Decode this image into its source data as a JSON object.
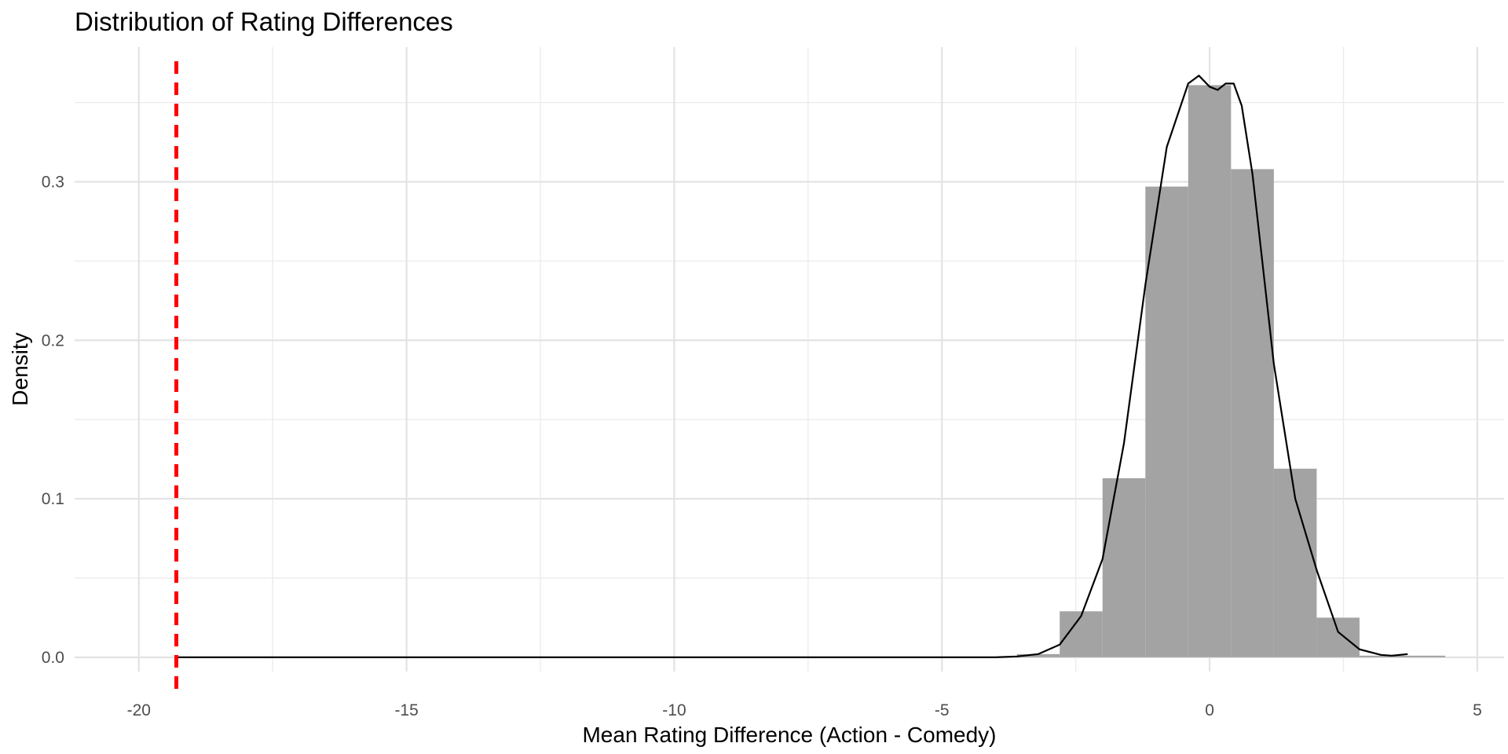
{
  "chart_data": {
    "type": "histogram",
    "title": "Distribution of Rating Differences",
    "xlabel": "Mean Rating Difference (Action - Comedy)",
    "ylabel": "Density",
    "xlim": [
      -21.2,
      5.5
    ],
    "ylim": [
      -0.009,
      0.385
    ],
    "x_ticks": [
      -20,
      -15,
      -10,
      -5,
      0,
      5
    ],
    "x_tick_labels": [
      "-20",
      "-15",
      "-10",
      "-5",
      "0",
      "5"
    ],
    "y_ticks": [
      0.0,
      0.1,
      0.2,
      0.3
    ],
    "y_tick_labels": [
      "0.0",
      "0.1",
      "0.2",
      "0.3"
    ],
    "grid": true,
    "histogram": {
      "fill": "#A3A3A3",
      "bins": [
        {
          "x0": -3.6,
          "x1": -2.8,
          "density": 0.002
        },
        {
          "x0": -2.8,
          "x1": -2.0,
          "density": 0.029
        },
        {
          "x0": -2.0,
          "x1": -1.2,
          "density": 0.113
        },
        {
          "x0": -1.2,
          "x1": -0.4,
          "density": 0.297
        },
        {
          "x0": -0.4,
          "x1": 0.4,
          "density": 0.361
        },
        {
          "x0": 0.4,
          "x1": 1.2,
          "density": 0.308
        },
        {
          "x0": 1.2,
          "x1": 2.0,
          "density": 0.119
        },
        {
          "x0": 2.0,
          "x1": 2.8,
          "density": 0.025
        },
        {
          "x0": 2.8,
          "x1": 3.6,
          "density": 0.001
        },
        {
          "x0": 3.6,
          "x1": 4.4,
          "density": 0.001
        }
      ]
    },
    "density_curve": {
      "color": "#000000",
      "points": [
        [
          -19.3,
          0.0
        ],
        [
          -4.0,
          0.0
        ],
        [
          -3.6,
          0.0005
        ],
        [
          -3.2,
          0.002
        ],
        [
          -2.8,
          0.008
        ],
        [
          -2.4,
          0.026
        ],
        [
          -2.0,
          0.062
        ],
        [
          -1.6,
          0.135
        ],
        [
          -1.2,
          0.235
        ],
        [
          -0.8,
          0.322
        ],
        [
          -0.4,
          0.362
        ],
        [
          -0.2,
          0.367
        ],
        [
          0.0,
          0.36
        ],
        [
          0.15,
          0.358
        ],
        [
          0.3,
          0.362
        ],
        [
          0.45,
          0.362
        ],
        [
          0.6,
          0.348
        ],
        [
          0.8,
          0.305
        ],
        [
          1.2,
          0.185
        ],
        [
          1.6,
          0.1
        ],
        [
          2.0,
          0.055
        ],
        [
          2.4,
          0.016
        ],
        [
          2.8,
          0.005
        ],
        [
          3.2,
          0.0015
        ],
        [
          3.4,
          0.001
        ],
        [
          3.7,
          0.002
        ]
      ]
    },
    "reference_line": {
      "x": -19.3,
      "color": "#FF0000",
      "style": "dashed"
    }
  }
}
